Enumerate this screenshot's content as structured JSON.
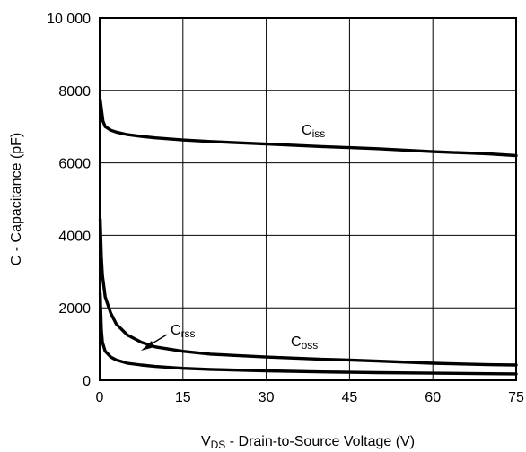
{
  "chart_data": {
    "type": "line",
    "xlabel": {
      "main": "V",
      "sub": "DS",
      "rest": " - Drain-to-Source Voltage (V)"
    },
    "ylabel": "C - Capacitance (pF)",
    "xlim": [
      0,
      75
    ],
    "ylim": [
      0,
      10000
    ],
    "x_ticks": [
      0,
      15,
      30,
      45,
      60,
      75
    ],
    "y_ticks": [
      0,
      2000,
      4000,
      6000,
      8000,
      10000
    ],
    "y_tick_labels": [
      "0",
      "2000",
      "4000",
      "6000",
      "8000",
      "10 000"
    ],
    "grid": true,
    "series": [
      {
        "name": "Ciss",
        "label_main": "C",
        "label_sub": "iss",
        "x": [
          0.1,
          0.3,
          0.6,
          1,
          2,
          3,
          5,
          7.5,
          10,
          15,
          20,
          30,
          40,
          45,
          50,
          60,
          70,
          75
        ],
        "y": [
          7750,
          7500,
          7150,
          7000,
          6900,
          6850,
          6780,
          6730,
          6690,
          6630,
          6590,
          6520,
          6450,
          6420,
          6390,
          6310,
          6250,
          6200
        ]
      },
      {
        "name": "Coss",
        "label_main": "C",
        "label_sub": "oss",
        "x": [
          0.1,
          0.3,
          0.5,
          1,
          2,
          3,
          5,
          7.5,
          10,
          15,
          20,
          30,
          40,
          45,
          50,
          60,
          70,
          75
        ],
        "y": [
          4450,
          3400,
          2900,
          2300,
          1850,
          1550,
          1250,
          1050,
          920,
          800,
          720,
          640,
          580,
          560,
          530,
          470,
          430,
          420
        ]
      },
      {
        "name": "Crss",
        "label_main": "C",
        "label_sub": "rss",
        "x": [
          0.1,
          0.3,
          0.5,
          1,
          2,
          3,
          5,
          7.5,
          10,
          15,
          20,
          30,
          40,
          45,
          50,
          60,
          70,
          75
        ],
        "y": [
          2400,
          1400,
          1050,
          800,
          640,
          560,
          470,
          420,
          380,
          330,
          300,
          260,
          230,
          220,
          210,
          195,
          180,
          175
        ]
      }
    ]
  }
}
